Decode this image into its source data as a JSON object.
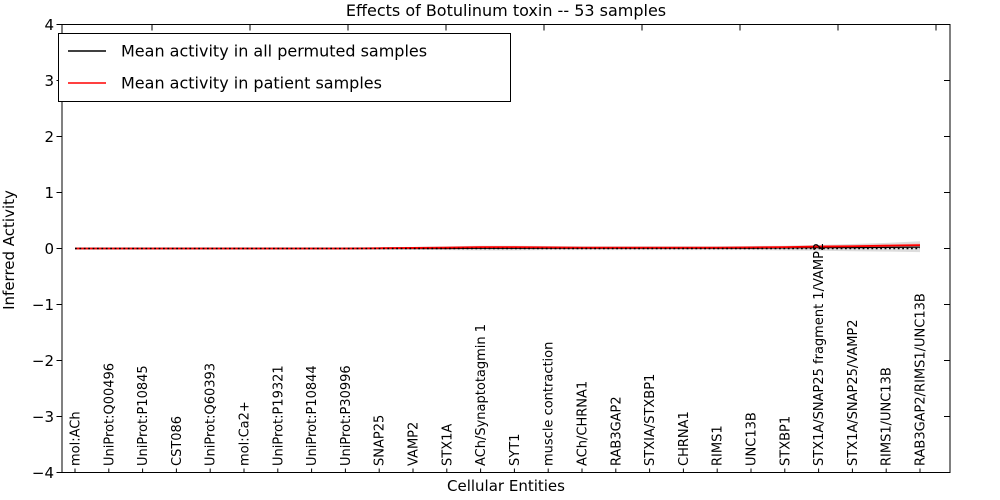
{
  "figure": {
    "title": "Effects of Botulinum toxin -- 53 samples",
    "xlabel": "Cellular Entities",
    "ylabel": "Inferred Activity"
  },
  "legend": {
    "items": [
      {
        "label": "Mean activity in all permuted samples",
        "color": "#000000"
      },
      {
        "label": "Mean activity in patient samples",
        "color": "#ff0000"
      }
    ]
  },
  "chart_data": {
    "type": "line",
    "title": "Effects of Botulinum toxin -- 53 samples",
    "xlabel": "Cellular Entities",
    "ylabel": "Inferred Activity",
    "ylim": [
      -4,
      4
    ],
    "yticks": [
      4,
      3,
      2,
      1,
      0,
      -1,
      -2,
      -3,
      -4
    ],
    "grid": false,
    "legend_position": "upper left",
    "categories": [
      "mol:ACh",
      "UniProt:Q00496",
      "UniProt:P10845",
      "CST086",
      "UniProt:Q60393",
      "mol:Ca2+",
      "UniProt:P19321",
      "UniProt:P10844",
      "UniProt:P30996",
      "SNAP25",
      "VAMP2",
      "STX1A",
      "ACh/Synaptotagmin 1",
      "SYT1",
      "muscle contraction",
      "ACh/CHRNA1",
      "RAB3GAP2",
      "STXIA/STXBP1",
      "CHRNA1",
      "RIMS1",
      "UNC13B",
      "STXBP1",
      "STX1A/SNAP25 fragment 1/VAMP2",
      "STX1A/SNAP25/VAMP2",
      "RIMS1/UNC13B",
      "RAB3GAP2/RIMS1/UNC13B"
    ],
    "series": [
      {
        "name": "Mean activity in all permuted samples",
        "color": "#000000",
        "style": "solid",
        "width": 1.2,
        "values": [
          0,
          0,
          0,
          0,
          0,
          0,
          0,
          0,
          0,
          0,
          0,
          0,
          0.005,
          0.005,
          0.005,
          0.005,
          0.005,
          0.005,
          0.005,
          0.005,
          0.005,
          0.01,
          0.015,
          0.015,
          0.02,
          0.025
        ]
      },
      {
        "name": "Mean activity in patient samples",
        "color": "#ff0000",
        "style": "solid",
        "width": 1.8,
        "values": [
          0,
          0,
          0,
          0,
          0,
          0,
          0,
          0,
          0,
          0.005,
          0.01,
          0.015,
          0.025,
          0.025,
          0.02,
          0.015,
          0.015,
          0.015,
          0.015,
          0.015,
          0.02,
          0.025,
          0.035,
          0.04,
          0.05,
          0.06
        ]
      },
      {
        "name": "zero reference",
        "color": "#000000",
        "style": "dotted",
        "width": 1.4,
        "values": [
          0,
          0,
          0,
          0,
          0,
          0,
          0,
          0,
          0,
          0,
          0,
          0,
          0,
          0,
          0,
          0,
          0,
          0,
          0,
          0,
          0,
          0,
          0,
          0,
          0,
          0
        ]
      }
    ],
    "bands": [
      {
        "name": "permuted samples std band",
        "color": "#d9d9d9",
        "opacity": 0.9,
        "upper": [
          0.02,
          0.02,
          0.02,
          0.02,
          0.02,
          0.02,
          0.02,
          0.02,
          0.02,
          0.025,
          0.03,
          0.04,
          0.05,
          0.05,
          0.045,
          0.04,
          0.04,
          0.04,
          0.04,
          0.04,
          0.045,
          0.05,
          0.065,
          0.08,
          0.1,
          0.13
        ],
        "lower": [
          -0.02,
          -0.02,
          -0.02,
          -0.02,
          -0.02,
          -0.02,
          -0.02,
          -0.02,
          -0.02,
          -0.02,
          -0.025,
          -0.03,
          -0.035,
          -0.035,
          -0.03,
          -0.03,
          -0.03,
          -0.03,
          -0.03,
          -0.03,
          -0.03,
          -0.035,
          -0.04,
          -0.05,
          -0.055,
          -0.065
        ]
      },
      {
        "name": "patient samples std band",
        "color": "#ff9999",
        "opacity": 0.45,
        "upper": [
          0.015,
          0.015,
          0.015,
          0.015,
          0.015,
          0.015,
          0.015,
          0.015,
          0.015,
          0.02,
          0.025,
          0.035,
          0.045,
          0.045,
          0.04,
          0.03,
          0.03,
          0.03,
          0.03,
          0.03,
          0.035,
          0.045,
          0.055,
          0.065,
          0.075,
          0.09
        ],
        "lower": [
          -0.015,
          -0.015,
          -0.015,
          -0.015,
          -0.015,
          -0.015,
          -0.015,
          -0.015,
          -0.015,
          -0.01,
          -0.005,
          0,
          0.005,
          0.005,
          0,
          -0.005,
          -0.005,
          -0.005,
          -0.005,
          -0.005,
          0,
          0.005,
          0.015,
          0.02,
          0.025,
          0.03
        ]
      }
    ]
  }
}
